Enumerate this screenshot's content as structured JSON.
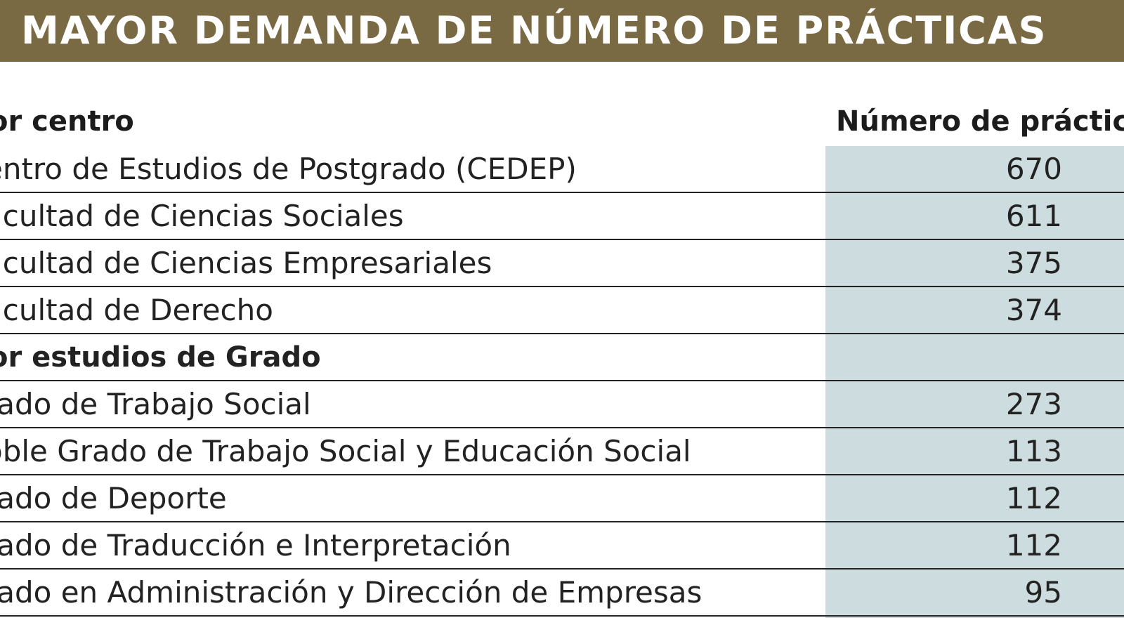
{
  "title": "MAYOR DEMANDA DE NÚMERO DE PRÁCTICAS",
  "header": {
    "left": "or centro",
    "right": "Número de práctic"
  },
  "rows": [
    {
      "label": "entro de Estudios de Postgrado (CEDEP)",
      "value": "670",
      "section": false
    },
    {
      "label": "acultad de Ciencias Sociales",
      "value": "611",
      "section": false
    },
    {
      "label": "acultad de Ciencias Empresariales",
      "value": "375",
      "section": false
    },
    {
      "label": "acultad de Derecho",
      "value": "374",
      "section": false
    },
    {
      "label": "or estudios de Grado",
      "value": "",
      "section": true
    },
    {
      "label": "rado de Trabajo Social",
      "value": "273",
      "section": false
    },
    {
      "label": "oble Grado de Trabajo Social y Educación Social",
      "value": "113",
      "section": false
    },
    {
      "label": "rado de Deporte",
      "value": "112",
      "section": false
    },
    {
      "label": "rado de Traducción e Interpretación",
      "value": "112",
      "section": false
    },
    {
      "label": "rado en Administración y Dirección de Empresas",
      "value": "95",
      "section": false
    }
  ],
  "colors": {
    "banner": "#7a6a43",
    "value_column": "#cddcdf"
  }
}
